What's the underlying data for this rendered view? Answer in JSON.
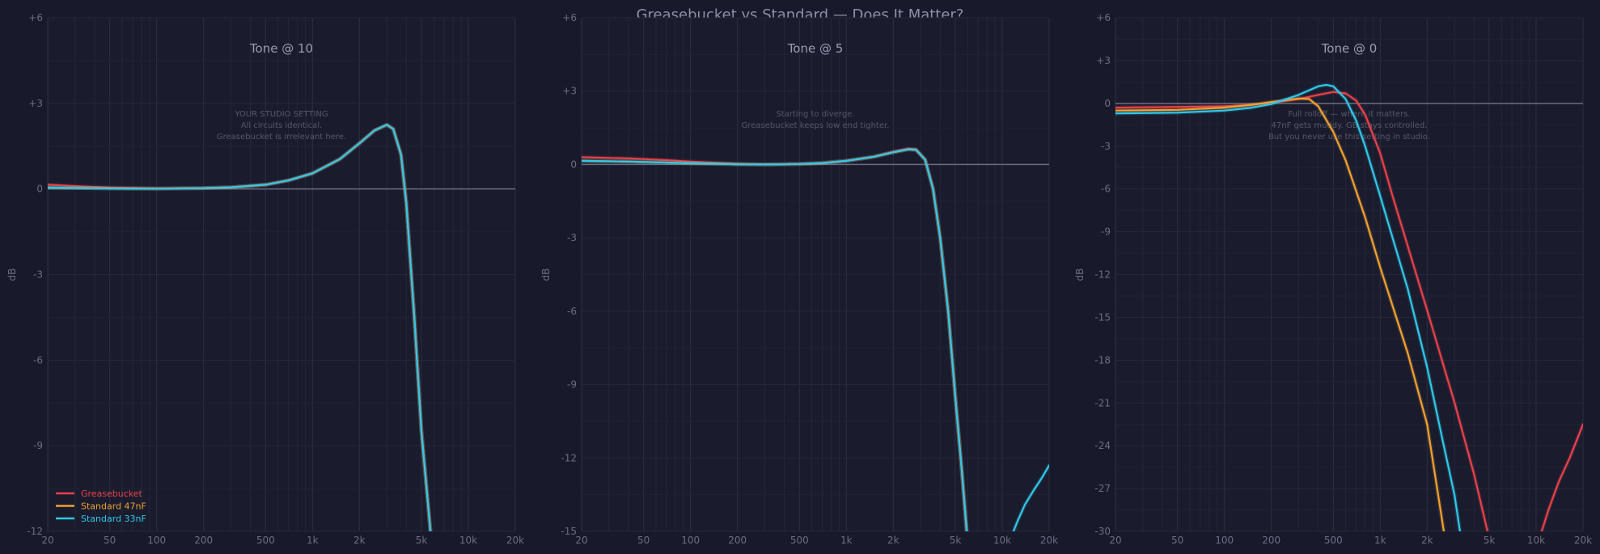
{
  "figure": {
    "title": "Greasebucket vs Standard — Does It Matter?",
    "background": "#181a2c",
    "plot_background": "#1a1c2e"
  },
  "legend": {
    "placement": "lower-left",
    "entries": [
      {
        "label": "Greasebucket",
        "color": "#e8414a"
      },
      {
        "label": "Standard 47nF",
        "color": "#f0a030"
      },
      {
        "label": "Standard 33nF",
        "color": "#30c8e8"
      }
    ]
  },
  "chart_data": [
    {
      "type": "line",
      "title": "Tone @ 10",
      "xlabel": "",
      "ylabel": "dB",
      "xscale": "log",
      "xlim": [
        20,
        20000
      ],
      "ylim": [
        -12,
        6
      ],
      "grid": true,
      "x_ticks": [
        {
          "value": 20,
          "label": "20"
        },
        {
          "value": 50,
          "label": "50"
        },
        {
          "value": 100,
          "label": "100"
        },
        {
          "value": 200,
          "label": "200"
        },
        {
          "value": 500,
          "label": "500"
        },
        {
          "value": 1000,
          "label": "1k"
        },
        {
          "value": 2000,
          "label": "2k"
        },
        {
          "value": 5000,
          "label": "5k"
        },
        {
          "value": 10000,
          "label": "10k"
        },
        {
          "value": 20000,
          "label": "20k"
        }
      ],
      "y_ticks": [
        {
          "value": 6,
          "label": "+6"
        },
        {
          "value": 3,
          "label": "+3"
        },
        {
          "value": 0,
          "label": "0"
        },
        {
          "value": -3,
          "label": "-3"
        },
        {
          "value": -6,
          "label": "-6"
        },
        {
          "value": -9,
          "label": "-9"
        },
        {
          "value": -12,
          "label": "-12"
        }
      ],
      "annotation": [
        "YOUR STUDIO SETTING",
        "All circuits identical.",
        "Greasebucket is irrelevant here."
      ],
      "series": [
        {
          "name": "Greasebucket",
          "color": "#e8414a",
          "points": [
            [
              20,
              0.15
            ],
            [
              30,
              0.1
            ],
            [
              50,
              0.05
            ],
            [
              100,
              0.02
            ],
            [
              200,
              0.03
            ],
            [
              300,
              0.06
            ],
            [
              500,
              0.15
            ],
            [
              700,
              0.3
            ],
            [
              1000,
              0.55
            ],
            [
              1500,
              1.05
            ],
            [
              2000,
              1.6
            ],
            [
              2500,
              2.05
            ],
            [
              3000,
              2.25
            ],
            [
              3300,
              2.1
            ],
            [
              3700,
              1.2
            ],
            [
              4000,
              -0.5
            ],
            [
              4500,
              -4.5
            ],
            [
              5000,
              -8.5
            ],
            [
              5500,
              -11.0
            ],
            [
              5800,
              -12.4
            ]
          ]
        },
        {
          "name": "Standard 47nF",
          "color": "#f0a030",
          "points": [
            [
              20,
              0.05
            ],
            [
              50,
              0.02
            ],
            [
              100,
              0.01
            ],
            [
              200,
              0.03
            ],
            [
              300,
              0.06
            ],
            [
              500,
              0.15
            ],
            [
              700,
              0.3
            ],
            [
              1000,
              0.55
            ],
            [
              1500,
              1.05
            ],
            [
              2000,
              1.6
            ],
            [
              2500,
              2.05
            ],
            [
              3000,
              2.25
            ],
            [
              3300,
              2.1
            ],
            [
              3700,
              1.2
            ],
            [
              4000,
              -0.5
            ],
            [
              4500,
              -4.5
            ],
            [
              5000,
              -8.5
            ],
            [
              5500,
              -11.0
            ],
            [
              5800,
              -12.4
            ]
          ]
        },
        {
          "name": "Standard 33nF",
          "color": "#30c8e8",
          "points": [
            [
              20,
              0.05
            ],
            [
              50,
              0.02
            ],
            [
              100,
              0.01
            ],
            [
              200,
              0.03
            ],
            [
              300,
              0.06
            ],
            [
              500,
              0.15
            ],
            [
              700,
              0.3
            ],
            [
              1000,
              0.55
            ],
            [
              1500,
              1.05
            ],
            [
              2000,
              1.6
            ],
            [
              2500,
              2.05
            ],
            [
              3000,
              2.25
            ],
            [
              3300,
              2.1
            ],
            [
              3700,
              1.2
            ],
            [
              4000,
              -0.5
            ],
            [
              4500,
              -4.5
            ],
            [
              5000,
              -8.5
            ],
            [
              5500,
              -11.0
            ],
            [
              5800,
              -12.4
            ]
          ]
        }
      ]
    },
    {
      "type": "line",
      "title": "Tone @ 5",
      "xlabel": "",
      "ylabel": "dB",
      "xscale": "log",
      "xlim": [
        20,
        20000
      ],
      "ylim": [
        -15,
        6
      ],
      "grid": true,
      "x_ticks": [
        {
          "value": 20,
          "label": "20"
        },
        {
          "value": 50,
          "label": "50"
        },
        {
          "value": 100,
          "label": "100"
        },
        {
          "value": 200,
          "label": "200"
        },
        {
          "value": 500,
          "label": "500"
        },
        {
          "value": 1000,
          "label": "1k"
        },
        {
          "value": 2000,
          "label": "2k"
        },
        {
          "value": 5000,
          "label": "5k"
        },
        {
          "value": 10000,
          "label": "10k"
        },
        {
          "value": 20000,
          "label": "20k"
        }
      ],
      "y_ticks": [
        {
          "value": 6,
          "label": "+6"
        },
        {
          "value": 3,
          "label": "+3"
        },
        {
          "value": 0,
          "label": "0"
        },
        {
          "value": -3,
          "label": "-3"
        },
        {
          "value": -6,
          "label": "-6"
        },
        {
          "value": -9,
          "label": "-9"
        },
        {
          "value": -12,
          "label": "-12"
        },
        {
          "value": -15,
          "label": "-15"
        }
      ],
      "annotation": [
        "Starting to diverge.",
        "Greasebucket keeps low end tighter."
      ],
      "series": [
        {
          "name": "Greasebucket",
          "color": "#e8414a",
          "points": [
            [
              20,
              0.3
            ],
            [
              40,
              0.25
            ],
            [
              70,
              0.18
            ],
            [
              100,
              0.12
            ],
            [
              200,
              0.03
            ],
            [
              300,
              0.0
            ],
            [
              500,
              0.02
            ],
            [
              700,
              0.06
            ],
            [
              1000,
              0.15
            ],
            [
              1500,
              0.32
            ],
            [
              2000,
              0.52
            ],
            [
              2500,
              0.65
            ],
            [
              2800,
              0.62
            ],
            [
              3200,
              0.2
            ],
            [
              3600,
              -1.0
            ],
            [
              4000,
              -3.0
            ],
            [
              4500,
              -6.0
            ],
            [
              5000,
              -9.5
            ],
            [
              5500,
              -12.5
            ],
            [
              6000,
              -15.5
            ]
          ]
        },
        {
          "name": "Standard 47nF",
          "color": "#f0a030",
          "points": [
            [
              20,
              0.15
            ],
            [
              40,
              0.12
            ],
            [
              70,
              0.08
            ],
            [
              100,
              0.05
            ],
            [
              200,
              0.01
            ],
            [
              300,
              0.0
            ],
            [
              500,
              0.02
            ],
            [
              700,
              0.06
            ],
            [
              1000,
              0.15
            ],
            [
              1500,
              0.32
            ],
            [
              2000,
              0.5
            ],
            [
              2500,
              0.62
            ],
            [
              2800,
              0.6
            ],
            [
              3200,
              0.2
            ],
            [
              3600,
              -1.0
            ],
            [
              4000,
              -3.0
            ],
            [
              4500,
              -6.0
            ],
            [
              5000,
              -9.5
            ],
            [
              5500,
              -12.5
            ],
            [
              6000,
              -15.5
            ]
          ]
        },
        {
          "name": "Standard 33nF",
          "color": "#30c8e8",
          "points": [
            [
              20,
              0.15
            ],
            [
              40,
              0.12
            ],
            [
              70,
              0.08
            ],
            [
              100,
              0.05
            ],
            [
              200,
              0.01
            ],
            [
              300,
              0.0
            ],
            [
              500,
              0.02
            ],
            [
              700,
              0.06
            ],
            [
              1000,
              0.15
            ],
            [
              1500,
              0.32
            ],
            [
              2000,
              0.5
            ],
            [
              2500,
              0.62
            ],
            [
              2800,
              0.6
            ],
            [
              3200,
              0.2
            ],
            [
              3600,
              -1.0
            ],
            [
              4000,
              -3.0
            ],
            [
              4500,
              -6.0
            ],
            [
              5000,
              -9.5
            ],
            [
              5500,
              -12.5
            ],
            [
              6000,
              -15.5
            ]
          ]
        },
        {
          "name": "Standard 33nF",
          "color": "#30c8e8",
          "points": [
            [
              11000,
              -15.5
            ],
            [
              12500,
              -14.6
            ],
            [
              14000,
              -13.9
            ],
            [
              16000,
              -13.3
            ],
            [
              18000,
              -12.8
            ],
            [
              20000,
              -12.3
            ]
          ]
        }
      ]
    },
    {
      "type": "line",
      "title": "Tone @ 0",
      "xlabel": "",
      "ylabel": "dB",
      "xscale": "log",
      "xlim": [
        20,
        20000
      ],
      "ylim": [
        -30,
        6
      ],
      "grid": true,
      "x_ticks": [
        {
          "value": 20,
          "label": "20"
        },
        {
          "value": 50,
          "label": "50"
        },
        {
          "value": 100,
          "label": "100"
        },
        {
          "value": 200,
          "label": "200"
        },
        {
          "value": 500,
          "label": "500"
        },
        {
          "value": 1000,
          "label": "1k"
        },
        {
          "value": 2000,
          "label": "2k"
        },
        {
          "value": 5000,
          "label": "5k"
        },
        {
          "value": 10000,
          "label": "10k"
        },
        {
          "value": 20000,
          "label": "20k"
        }
      ],
      "y_ticks": [
        {
          "value": 6,
          "label": "+6"
        },
        {
          "value": 3,
          "label": "+3"
        },
        {
          "value": 0,
          "label": "0"
        },
        {
          "value": -3,
          "label": "-3"
        },
        {
          "value": -6,
          "label": "-6"
        },
        {
          "value": -9,
          "label": "-9"
        },
        {
          "value": -12,
          "label": "-12"
        },
        {
          "value": -15,
          "label": "-15"
        },
        {
          "value": -18,
          "label": "-18"
        },
        {
          "value": -21,
          "label": "-21"
        },
        {
          "value": -24,
          "label": "-24"
        },
        {
          "value": -27,
          "label": "-27"
        },
        {
          "value": -30,
          "label": "-30"
        }
      ],
      "annotation": [
        "Full rolloff — where it matters.",
        "47nF gets muddy. GB stays controlled.",
        "But you never use this setting in studio."
      ],
      "series": [
        {
          "name": "Greasebucket",
          "color": "#e8414a",
          "points": [
            [
              20,
              -0.3
            ],
            [
              50,
              -0.25
            ],
            [
              100,
              -0.2
            ],
            [
              150,
              -0.1
            ],
            [
              200,
              0.05
            ],
            [
              300,
              0.3
            ],
            [
              400,
              0.6
            ],
            [
              500,
              0.8
            ],
            [
              600,
              0.7
            ],
            [
              700,
              0.2
            ],
            [
              800,
              -0.8
            ],
            [
              1000,
              -3.5
            ],
            [
              1200,
              -6.5
            ],
            [
              1500,
              -10.0
            ],
            [
              2000,
              -14.5
            ],
            [
              3000,
              -21.0
            ],
            [
              4000,
              -26.0
            ],
            [
              5000,
              -30.5
            ]
          ]
        },
        {
          "name": "Greasebucket",
          "color": "#e8414a",
          "points": [
            [
              10500,
              -30.5
            ],
            [
              12000,
              -28.5
            ],
            [
              14000,
              -26.5
            ],
            [
              16500,
              -24.8
            ],
            [
              20000,
              -22.5
            ]
          ]
        },
        {
          "name": "Standard 47nF",
          "color": "#f0a030",
          "points": [
            [
              20,
              -0.5
            ],
            [
              50,
              -0.45
            ],
            [
              100,
              -0.3
            ],
            [
              150,
              -0.1
            ],
            [
              200,
              0.1
            ],
            [
              300,
              0.35
            ],
            [
              350,
              0.3
            ],
            [
              400,
              -0.2
            ],
            [
              500,
              -2.0
            ],
            [
              600,
              -4.0
            ],
            [
              800,
              -8.0
            ],
            [
              1000,
              -11.5
            ],
            [
              1500,
              -17.5
            ],
            [
              2000,
              -22.5
            ],
            [
              2600,
              -30.5
            ]
          ]
        },
        {
          "name": "Standard 33nF",
          "color": "#30c8e8",
          "points": [
            [
              20,
              -0.7
            ],
            [
              50,
              -0.65
            ],
            [
              100,
              -0.5
            ],
            [
              150,
              -0.3
            ],
            [
              200,
              -0.05
            ],
            [
              300,
              0.6
            ],
            [
              400,
              1.2
            ],
            [
              450,
              1.3
            ],
            [
              500,
              1.2
            ],
            [
              600,
              0.3
            ],
            [
              700,
              -1.2
            ],
            [
              800,
              -3.0
            ],
            [
              1000,
              -6.5
            ],
            [
              1500,
              -13.0
            ],
            [
              2000,
              -18.5
            ],
            [
              2500,
              -23.5
            ],
            [
              3000,
              -27.5
            ],
            [
              3300,
              -30.5
            ]
          ]
        }
      ]
    }
  ]
}
